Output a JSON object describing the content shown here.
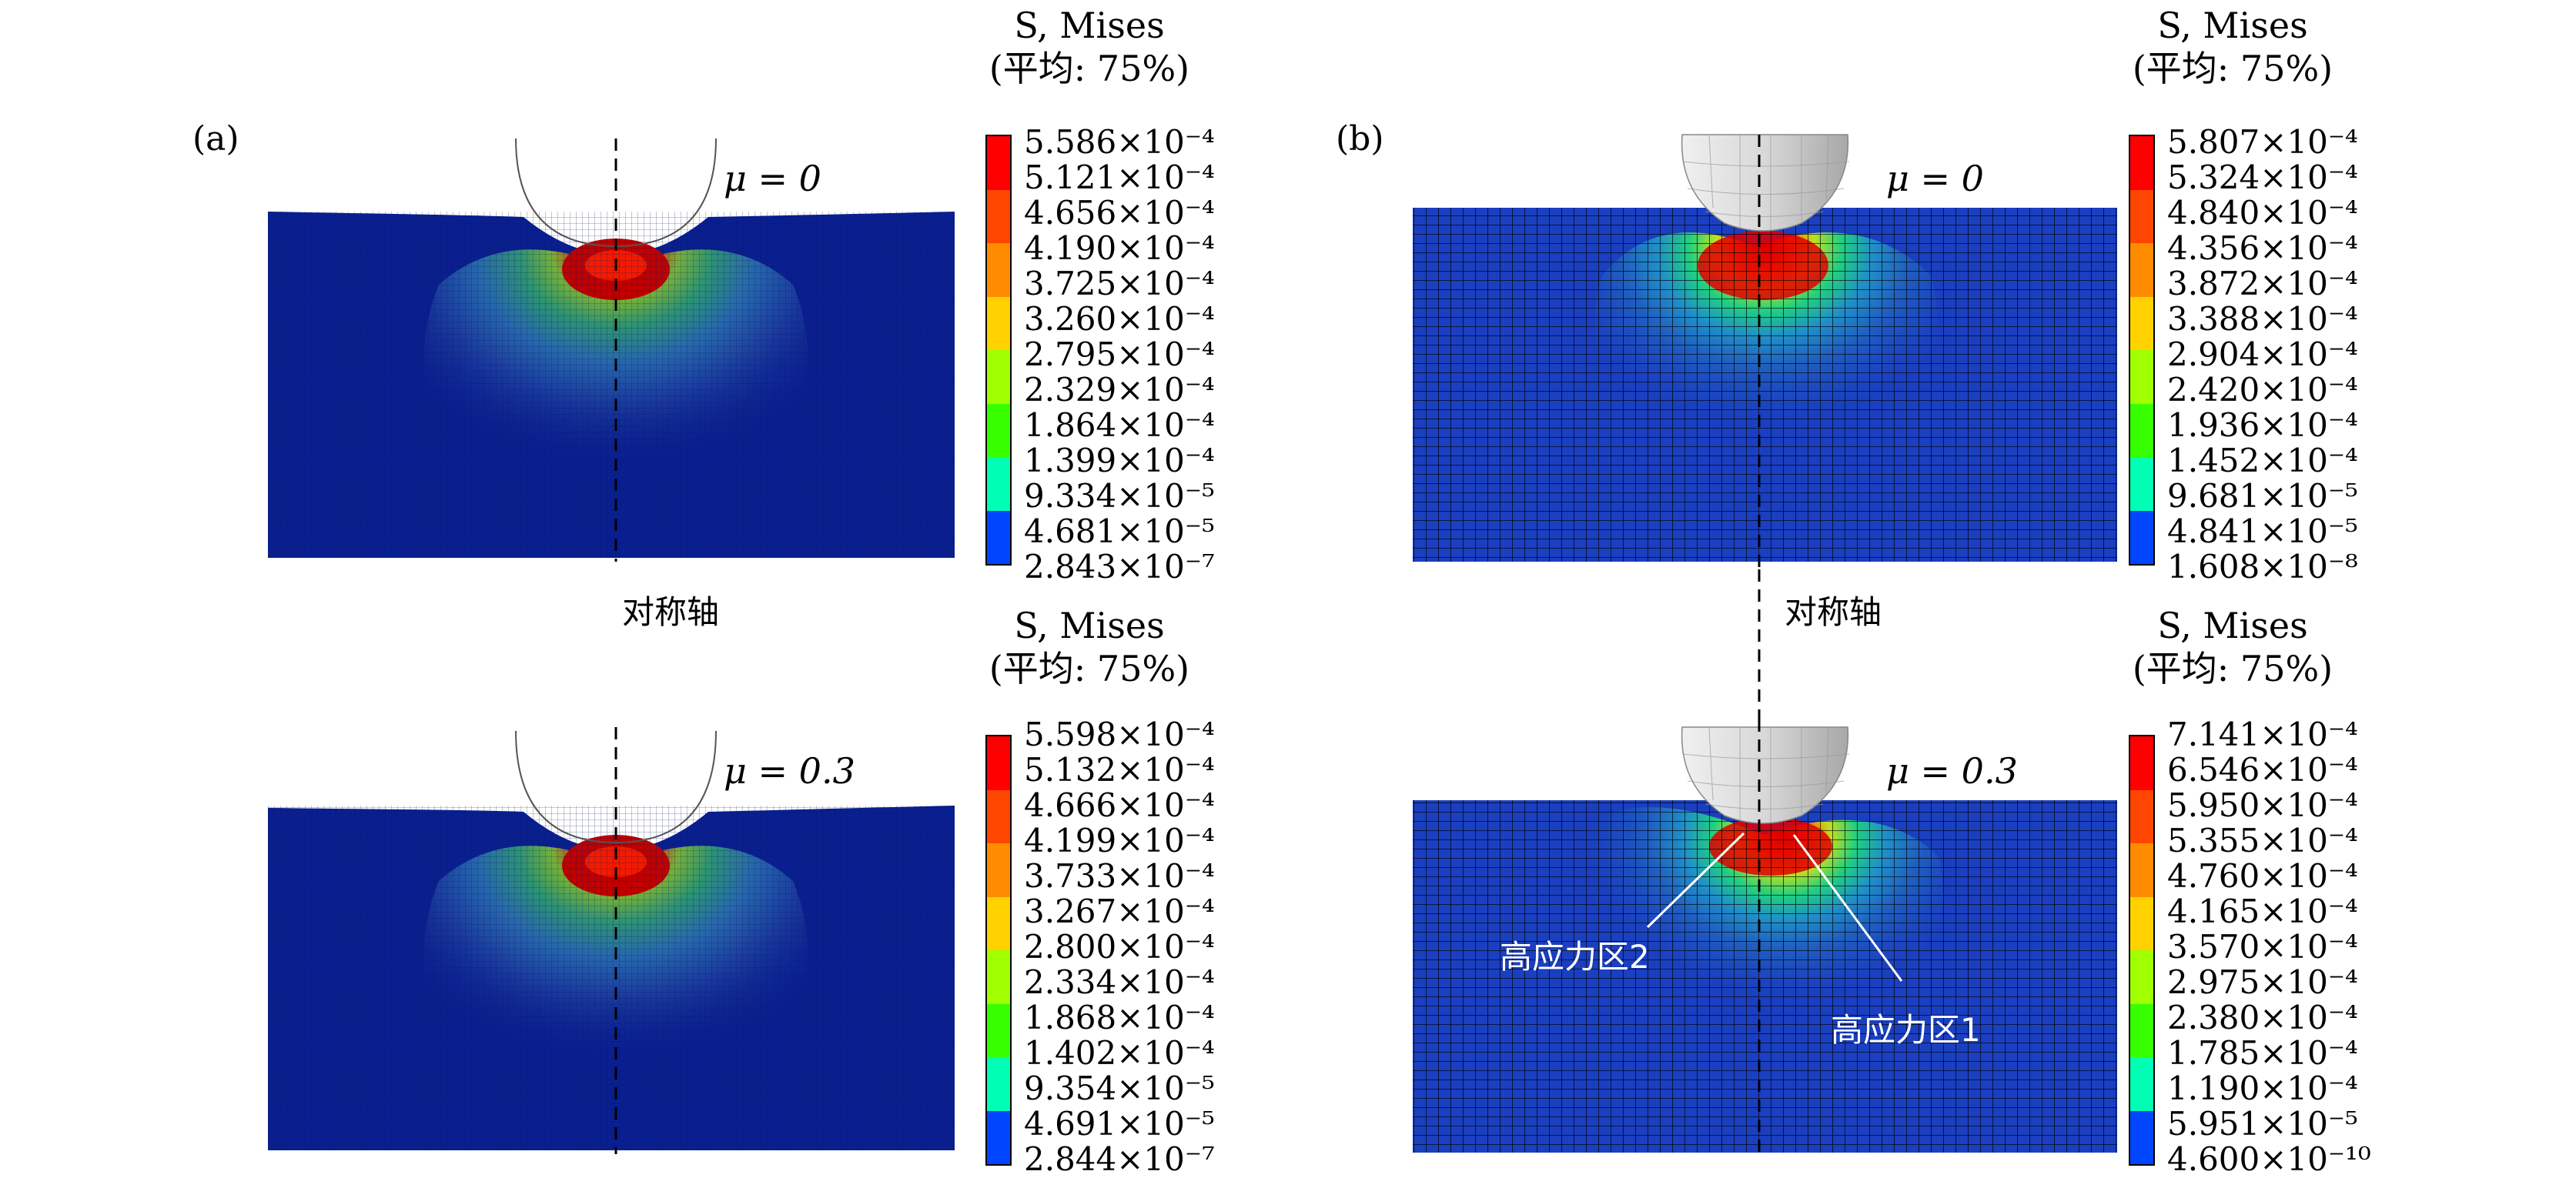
{
  "panels": [
    {
      "id": "a",
      "tag": "(a)",
      "axis_label": "对称轴",
      "sub": [
        {
          "mu": "μ = 0",
          "legend_title": "S, Mises",
          "legend_avg": "(平均: 75%)",
          "legend_values": [
            "5.586×10⁻⁴",
            "5.121×10⁻⁴",
            "4.656×10⁻⁴",
            "4.190×10⁻⁴",
            "3.725×10⁻⁴",
            "3.260×10⁻⁴",
            "2.795×10⁻⁴",
            "2.329×10⁻⁴",
            "1.864×10⁻⁴",
            "1.399×10⁻⁴",
            "9.334×10⁻⁵",
            "4.681×10⁻⁵",
            "2.843×10⁻⁷"
          ]
        },
        {
          "mu": "μ = 0.3",
          "legend_title": "S, Mises",
          "legend_avg": "(平均: 75%)",
          "legend_values": [
            "5.598×10⁻⁴",
            "5.132×10⁻⁴",
            "4.666×10⁻⁴",
            "4.199×10⁻⁴",
            "3.733×10⁻⁴",
            "3.267×10⁻⁴",
            "2.800×10⁻⁴",
            "2.334×10⁻⁴",
            "1.868×10⁻⁴",
            "1.402×10⁻⁴",
            "9.354×10⁻⁵",
            "4.691×10⁻⁵",
            "2.844×10⁻⁷"
          ]
        }
      ]
    },
    {
      "id": "b",
      "tag": "(b)",
      "axis_label": "对称轴",
      "sub": [
        {
          "mu": "μ = 0",
          "legend_title": "S, Mises",
          "legend_avg": "(平均: 75%)",
          "legend_values": [
            "5.807×10⁻⁴",
            "5.324×10⁻⁴",
            "4.840×10⁻⁴",
            "4.356×10⁻⁴",
            "3.872×10⁻⁴",
            "3.388×10⁻⁴",
            "2.904×10⁻⁴",
            "2.420×10⁻⁴",
            "1.936×10⁻⁴",
            "1.452×10⁻⁴",
            "9.681×10⁻⁵",
            "4.841×10⁻⁵",
            "1.608×10⁻⁸"
          ]
        },
        {
          "mu": "μ = 0.3",
          "legend_title": "S, Mises",
          "legend_avg": "(平均: 75%)",
          "legend_values": [
            "7.141×10⁻⁴",
            "6.546×10⁻⁴",
            "5.950×10⁻⁴",
            "5.355×10⁻⁴",
            "4.760×10⁻⁴",
            "4.165×10⁻⁴",
            "3.570×10⁻⁴",
            "2.975×10⁻⁴",
            "2.380×10⁻⁴",
            "1.785×10⁻⁴",
            "1.190×10⁻⁴",
            "5.951×10⁻⁵",
            "4.600×10⁻¹⁰"
          ],
          "annotations": [
            "高应力区2",
            "高应力区1"
          ]
        }
      ]
    }
  ],
  "colors": {
    "contour_scale": [
      "#ff0000",
      "#ff4600",
      "#ff8c00",
      "#ffd200",
      "#e6ff00",
      "#a0ff00",
      "#37ff00",
      "#00ff5a",
      "#00ffb4",
      "#00dcff",
      "#0096ff",
      "#0046ff",
      "#0000ff"
    ],
    "background_blue": "#0a1f8f"
  }
}
